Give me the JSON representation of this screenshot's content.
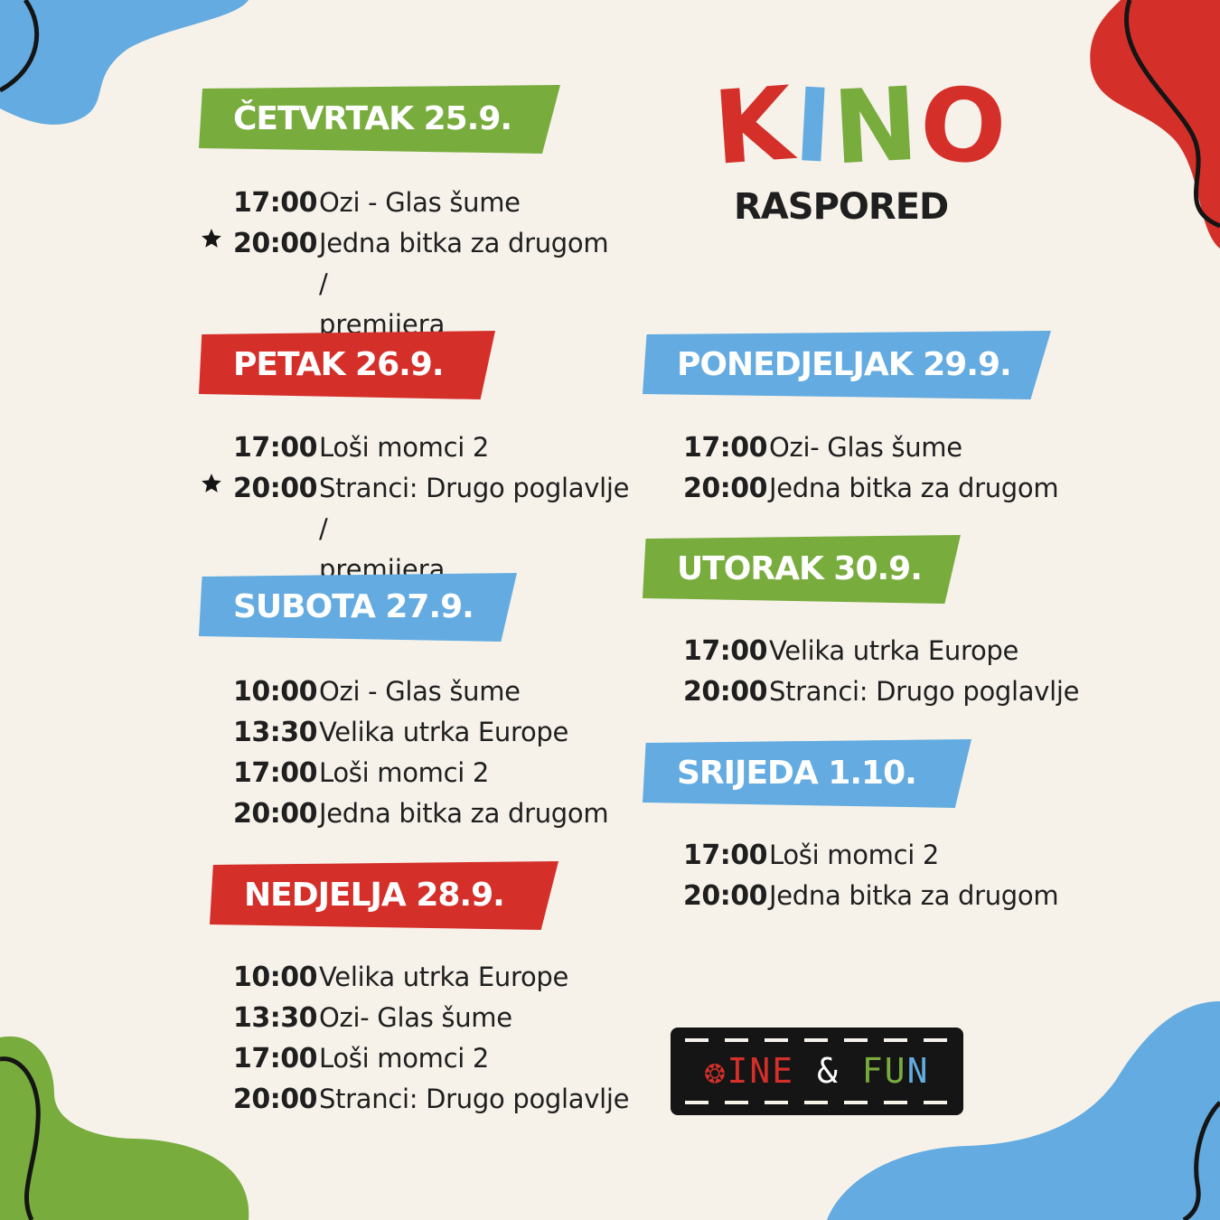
{
  "header": {
    "kino_letters": [
      "K",
      "I",
      "N",
      "O"
    ],
    "subtitle": "RASPORED"
  },
  "colors": {
    "green": "#78ac3d",
    "red": "#d52f2a",
    "blue": "#63abe0",
    "dark": "#1f1f1f",
    "background": "#f6f2ea"
  },
  "days": [
    {
      "label": "ČETVRTAK 25.9.",
      "color": "green",
      "screenings": [
        {
          "time": "17:00",
          "title": "Ozi - Glas šume",
          "premiere": false
        },
        {
          "time": "20:00",
          "title": "Jedna bitka za drugom",
          "premiere": true,
          "note": "/ premijera"
        }
      ]
    },
    {
      "label": "PETAK 26.9.",
      "color": "red",
      "screenings": [
        {
          "time": "17:00",
          "title": "Loši momci 2",
          "premiere": false
        },
        {
          "time": "20:00",
          "title": "Stranci: Drugo poglavlje",
          "premiere": true,
          "note": "/ premijera"
        }
      ]
    },
    {
      "label": "SUBOTA 27.9.",
      "color": "blue",
      "screenings": [
        {
          "time": "10:00",
          "title": "Ozi - Glas šume",
          "premiere": false
        },
        {
          "time": "13:30",
          "title": "Velika utrka Europe",
          "premiere": false
        },
        {
          "time": "17:00",
          "title": "Loši momci 2",
          "premiere": false
        },
        {
          "time": "20:00",
          "title": "Jedna bitka za drugom",
          "premiere": false
        }
      ]
    },
    {
      "label": "NEDJELJA 28.9.",
      "color": "red",
      "screenings": [
        {
          "time": "10:00",
          "title": "Velika utrka Europe",
          "premiere": false
        },
        {
          "time": "13:30",
          "title": "Ozi- Glas šume",
          "premiere": false
        },
        {
          "time": "17:00",
          "title": "Loši momci 2",
          "premiere": false
        },
        {
          "time": "20:00",
          "title": "Stranci: Drugo poglavlje",
          "premiere": false
        }
      ]
    },
    {
      "label": "PONEDJELJAK 29.9.",
      "color": "blue",
      "screenings": [
        {
          "time": "17:00",
          "title": "Ozi- Glas šume",
          "premiere": false
        },
        {
          "time": "20:00",
          "title": "Jedna bitka za drugom",
          "premiere": false
        }
      ]
    },
    {
      "label": "UTORAK 30.9.",
      "color": "green",
      "screenings": [
        {
          "time": "17:00",
          "title": "Velika utrka Europe",
          "premiere": false
        },
        {
          "time": "20:00",
          "title": "Stranci: Drugo poglavlje",
          "premiere": false
        }
      ]
    },
    {
      "label": "SRIJEDA 1.10.",
      "color": "blue",
      "screenings": [
        {
          "time": "17:00",
          "title": "Loši momci 2",
          "premiere": false
        },
        {
          "time": "20:00",
          "title": "Jedna bitka za drugom",
          "premiere": false
        }
      ]
    }
  ],
  "logo": {
    "text": "CINE & FUN",
    "icon": "film-reel-icon"
  }
}
